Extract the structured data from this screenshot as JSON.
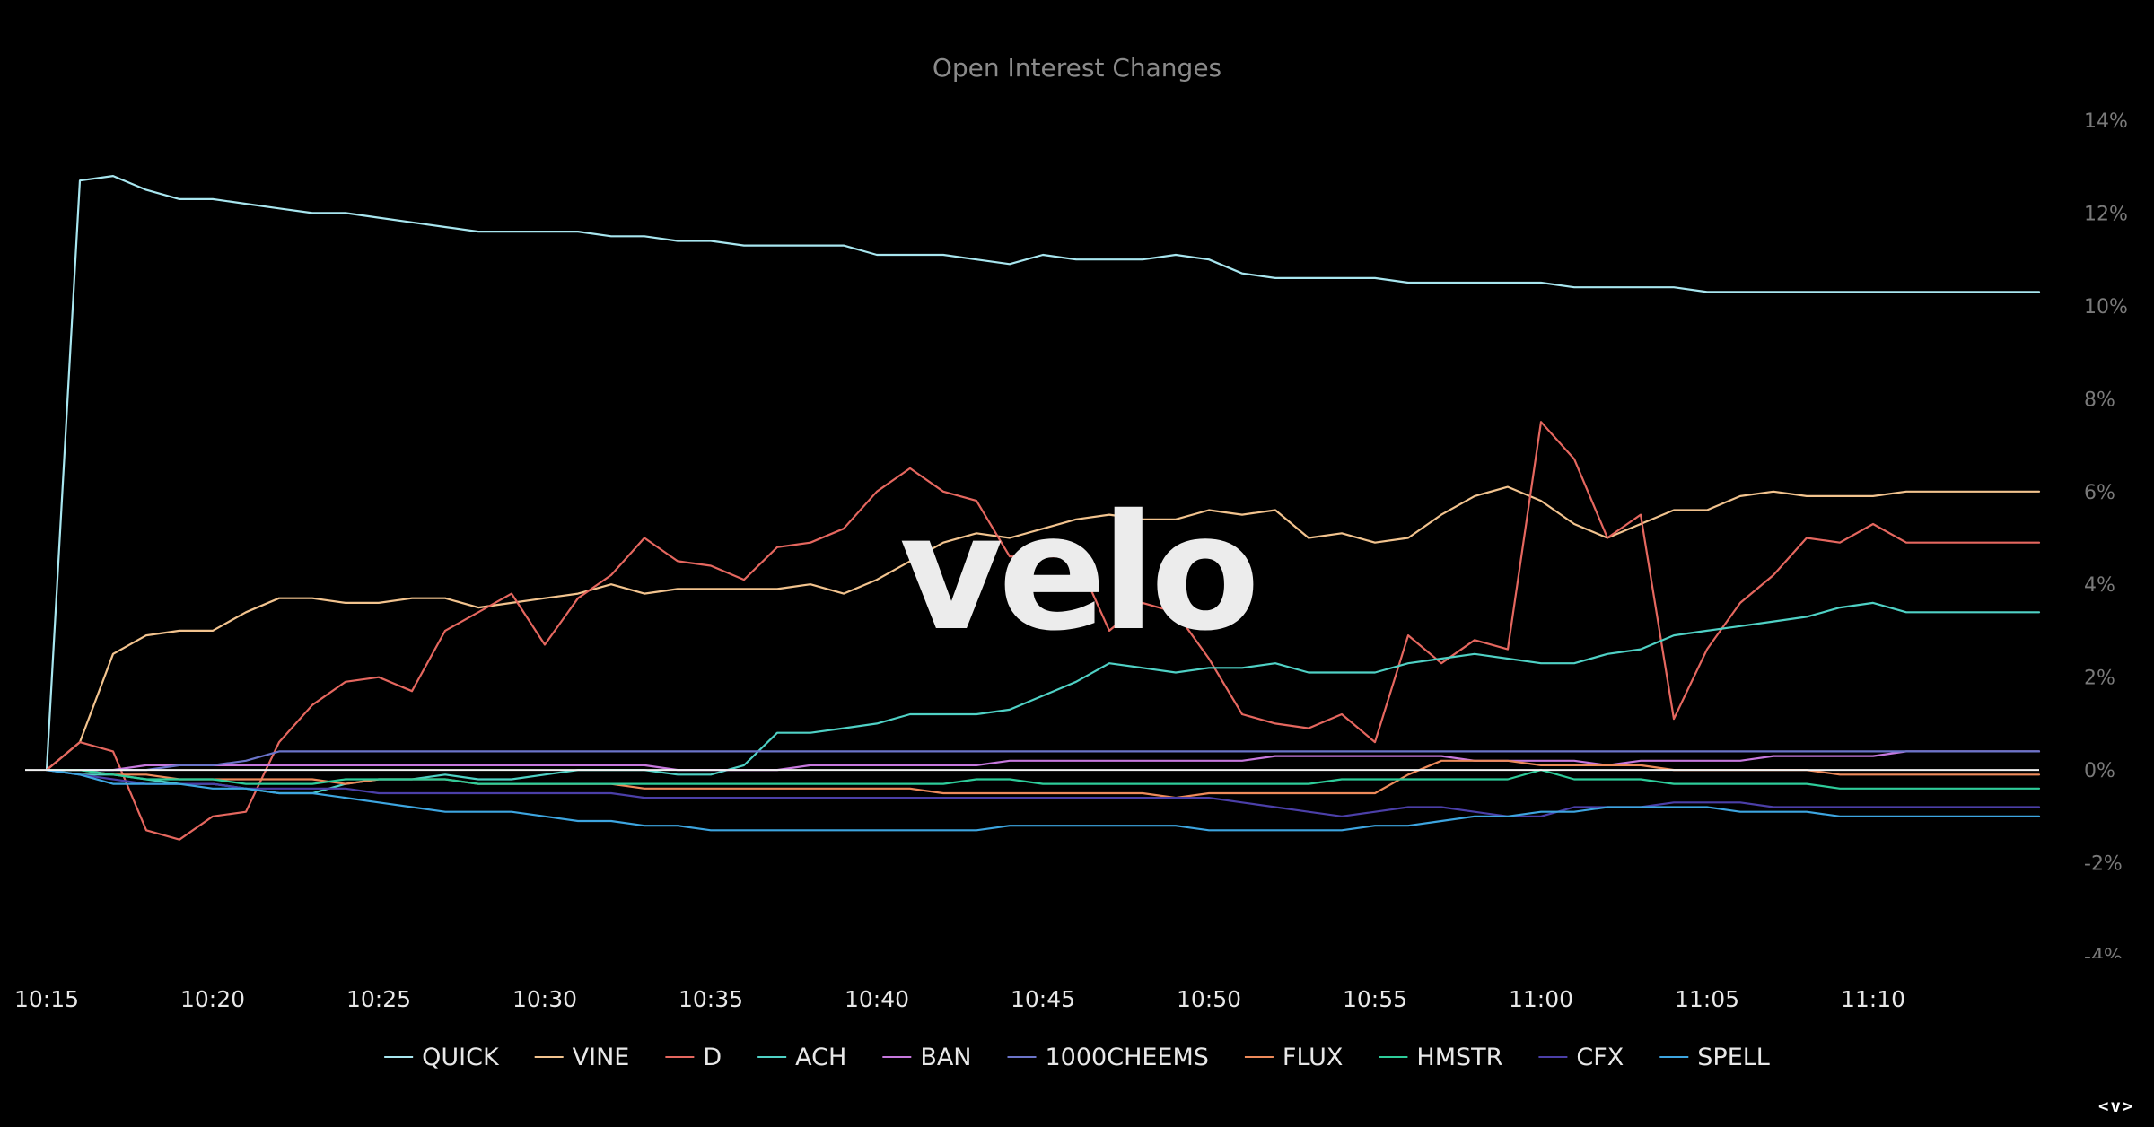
{
  "chart_data": {
    "type": "line",
    "title": "Open Interest Changes",
    "watermark": "velo",
    "xlabel": "",
    "ylabel": "",
    "ylim": [
      -4,
      14
    ],
    "yticks": [
      14,
      12,
      10,
      8,
      6,
      4,
      2,
      0,
      -2,
      -4
    ],
    "ytick_labels": [
      "14%",
      "12%",
      "10%",
      "8%",
      "6%",
      "4%",
      "2%",
      "0%",
      "-2%",
      "-4%"
    ],
    "xlim": [
      0,
      60
    ],
    "x_minutes": [
      0,
      1,
      2,
      3,
      4,
      5,
      6,
      7,
      8,
      9,
      10,
      11,
      12,
      13,
      14,
      15,
      16,
      17,
      18,
      19,
      20,
      21,
      22,
      23,
      24,
      25,
      26,
      27,
      28,
      29,
      30,
      31,
      32,
      33,
      34,
      35,
      36,
      37,
      38,
      39,
      40,
      41,
      42,
      43,
      44,
      45,
      46,
      47,
      48,
      49,
      50,
      51,
      52,
      53,
      54,
      55,
      56,
      57,
      58,
      59,
      60
    ],
    "xticks": [
      0,
      5,
      10,
      15,
      20,
      25,
      30,
      35,
      40,
      45,
      50,
      55
    ],
    "xtick_labels": [
      "10:15",
      "10:20",
      "10:25",
      "10:30",
      "10:35",
      "10:40",
      "10:45",
      "10:50",
      "10:55",
      "11:00",
      "11:05",
      "11:10"
    ],
    "legend_position": "bottom",
    "grid": false,
    "series": [
      {
        "name": "QUICK",
        "color": "#a8e6ef",
        "values": [
          0,
          12.7,
          12.8,
          12.5,
          12.3,
          12.3,
          12.2,
          12.1,
          12.0,
          12.0,
          11.9,
          11.8,
          11.7,
          11.6,
          11.6,
          11.6,
          11.6,
          11.5,
          11.5,
          11.4,
          11.4,
          11.3,
          11.3,
          11.3,
          11.3,
          11.1,
          11.1,
          11.1,
          11.0,
          10.9,
          11.1,
          11.0,
          11.0,
          11.0,
          11.1,
          11.0,
          10.7,
          10.6,
          10.6,
          10.6,
          10.6,
          10.5,
          10.5,
          10.5,
          10.5,
          10.5,
          10.4,
          10.4,
          10.4,
          10.4,
          10.3,
          10.3,
          10.3,
          10.3,
          10.3,
          10.3,
          10.3,
          10.3,
          10.3,
          10.3,
          10.3
        ]
      },
      {
        "name": "VINE",
        "color": "#f2c38e",
        "values": [
          0,
          0.6,
          2.5,
          2.9,
          3.0,
          3.0,
          3.4,
          3.7,
          3.7,
          3.6,
          3.6,
          3.7,
          3.7,
          3.5,
          3.6,
          3.7,
          3.8,
          4.0,
          3.8,
          3.9,
          3.9,
          3.9,
          3.9,
          4.0,
          3.8,
          4.1,
          4.5,
          4.9,
          5.1,
          5.0,
          5.2,
          5.4,
          5.5,
          5.4,
          5.4,
          5.6,
          5.5,
          5.6,
          5.0,
          5.1,
          4.9,
          5.0,
          5.5,
          5.9,
          6.1,
          5.8,
          5.3,
          5.0,
          5.3,
          5.6,
          5.6,
          5.9,
          6.0,
          5.9,
          5.9,
          5.9,
          6.0,
          6.0,
          6.0,
          6.0,
          6.0
        ]
      },
      {
        "name": "D",
        "color": "#e5675f",
        "values": [
          0,
          0.6,
          0.4,
          -1.3,
          -1.5,
          -1.0,
          -0.9,
          0.6,
          1.4,
          1.9,
          2.0,
          1.7,
          3.0,
          3.4,
          3.8,
          2.7,
          3.7,
          4.2,
          5.0,
          4.5,
          4.4,
          4.1,
          4.8,
          4.9,
          5.2,
          6.0,
          6.5,
          6.0,
          5.8,
          4.6,
          4.6,
          4.6,
          3.0,
          3.6,
          3.4,
          2.4,
          1.2,
          1.0,
          0.9,
          1.2,
          0.6,
          2.9,
          2.3,
          2.8,
          2.6,
          7.5,
          6.7,
          5.0,
          5.5,
          1.1,
          2.6,
          3.6,
          4.2,
          5.0,
          4.9,
          5.3,
          4.9,
          4.9,
          4.9,
          4.9,
          4.9
        ]
      },
      {
        "name": "ACH",
        "color": "#4fd1c5",
        "values": [
          0,
          -0.1,
          -0.1,
          -0.2,
          -0.3,
          -0.3,
          -0.4,
          -0.5,
          -0.5,
          -0.3,
          -0.2,
          -0.2,
          -0.1,
          -0.2,
          -0.2,
          -0.1,
          0.0,
          0.0,
          0.0,
          -0.1,
          -0.1,
          0.1,
          0.8,
          0.8,
          0.9,
          1.0,
          1.2,
          1.2,
          1.2,
          1.3,
          1.6,
          1.9,
          2.3,
          2.2,
          2.1,
          2.2,
          2.2,
          2.3,
          2.1,
          2.1,
          2.1,
          2.3,
          2.4,
          2.5,
          2.4,
          2.3,
          2.3,
          2.5,
          2.6,
          2.9,
          3.0,
          3.1,
          3.2,
          3.3,
          3.5,
          3.6,
          3.4,
          3.4,
          3.4,
          3.4,
          3.4
        ]
      },
      {
        "name": "BAN",
        "color": "#c678dd",
        "values": [
          0,
          0.0,
          0.0,
          0.1,
          0.1,
          0.1,
          0.1,
          0.1,
          0.1,
          0.1,
          0.1,
          0.1,
          0.1,
          0.1,
          0.1,
          0.1,
          0.1,
          0.1,
          0.1,
          0.0,
          0.0,
          0.0,
          0.0,
          0.1,
          0.1,
          0.1,
          0.1,
          0.1,
          0.1,
          0.2,
          0.2,
          0.2,
          0.2,
          0.2,
          0.2,
          0.2,
          0.2,
          0.3,
          0.3,
          0.3,
          0.3,
          0.3,
          0.3,
          0.2,
          0.2,
          0.2,
          0.2,
          0.1,
          0.2,
          0.2,
          0.2,
          0.2,
          0.3,
          0.3,
          0.3,
          0.3,
          0.4,
          0.4,
          0.4,
          0.4,
          0.4
        ]
      },
      {
        "name": "1000CHEEMS",
        "color": "#6b74c9",
        "values": [
          0,
          0.0,
          0.0,
          0.0,
          0.1,
          0.1,
          0.2,
          0.4,
          0.4,
          0.4,
          0.4,
          0.4,
          0.4,
          0.4,
          0.4,
          0.4,
          0.4,
          0.4,
          0.4,
          0.4,
          0.4,
          0.4,
          0.4,
          0.4,
          0.4,
          0.4,
          0.4,
          0.4,
          0.4,
          0.4,
          0.4,
          0.4,
          0.4,
          0.4,
          0.4,
          0.4,
          0.4,
          0.4,
          0.4,
          0.4,
          0.4,
          0.4,
          0.4,
          0.4,
          0.4,
          0.4,
          0.4,
          0.4,
          0.4,
          0.4,
          0.4,
          0.4,
          0.4,
          0.4,
          0.4,
          0.4,
          0.4,
          0.4,
          0.4,
          0.4,
          0.4
        ]
      },
      {
        "name": "FLUX",
        "color": "#ee8a5a",
        "values": [
          0,
          0.0,
          -0.1,
          -0.1,
          -0.2,
          -0.2,
          -0.2,
          -0.2,
          -0.2,
          -0.3,
          -0.2,
          -0.2,
          -0.2,
          -0.3,
          -0.3,
          -0.3,
          -0.3,
          -0.3,
          -0.4,
          -0.4,
          -0.4,
          -0.4,
          -0.4,
          -0.4,
          -0.4,
          -0.4,
          -0.4,
          -0.5,
          -0.5,
          -0.5,
          -0.5,
          -0.5,
          -0.5,
          -0.5,
          -0.6,
          -0.5,
          -0.5,
          -0.5,
          -0.5,
          -0.5,
          -0.5,
          -0.1,
          0.2,
          0.2,
          0.2,
          0.1,
          0.1,
          0.1,
          0.1,
          0.0,
          0.0,
          0.0,
          0.0,
          0.0,
          -0.1,
          -0.1,
          -0.1,
          -0.1,
          -0.1,
          -0.1,
          -0.1
        ]
      },
      {
        "name": "HMSTR",
        "color": "#2ecc9a",
        "values": [
          0,
          0.0,
          -0.1,
          -0.2,
          -0.2,
          -0.2,
          -0.3,
          -0.3,
          -0.3,
          -0.2,
          -0.2,
          -0.2,
          -0.2,
          -0.3,
          -0.3,
          -0.3,
          -0.3,
          -0.3,
          -0.3,
          -0.3,
          -0.3,
          -0.3,
          -0.3,
          -0.3,
          -0.3,
          -0.3,
          -0.3,
          -0.3,
          -0.2,
          -0.2,
          -0.3,
          -0.3,
          -0.3,
          -0.3,
          -0.3,
          -0.3,
          -0.3,
          -0.3,
          -0.3,
          -0.2,
          -0.2,
          -0.2,
          -0.2,
          -0.2,
          -0.2,
          0.0,
          -0.2,
          -0.2,
          -0.2,
          -0.3,
          -0.3,
          -0.3,
          -0.3,
          -0.3,
          -0.4,
          -0.4,
          -0.4,
          -0.4,
          -0.4,
          -0.4,
          -0.4
        ]
      },
      {
        "name": "CFX",
        "color": "#4b3fa8",
        "values": [
          0,
          -0.1,
          -0.2,
          -0.3,
          -0.3,
          -0.3,
          -0.4,
          -0.4,
          -0.4,
          -0.4,
          -0.5,
          -0.5,
          -0.5,
          -0.5,
          -0.5,
          -0.5,
          -0.5,
          -0.5,
          -0.6,
          -0.6,
          -0.6,
          -0.6,
          -0.6,
          -0.6,
          -0.6,
          -0.6,
          -0.6,
          -0.6,
          -0.6,
          -0.6,
          -0.6,
          -0.6,
          -0.6,
          -0.6,
          -0.6,
          -0.6,
          -0.7,
          -0.8,
          -0.9,
          -1.0,
          -0.9,
          -0.8,
          -0.8,
          -0.9,
          -1.0,
          -1.0,
          -0.8,
          -0.8,
          -0.8,
          -0.7,
          -0.7,
          -0.7,
          -0.8,
          -0.8,
          -0.8,
          -0.8,
          -0.8,
          -0.8,
          -0.8,
          -0.8,
          -0.8
        ]
      },
      {
        "name": "SPELL",
        "color": "#3da5e0",
        "values": [
          0,
          -0.1,
          -0.3,
          -0.3,
          -0.3,
          -0.4,
          -0.4,
          -0.5,
          -0.5,
          -0.6,
          -0.7,
          -0.8,
          -0.9,
          -0.9,
          -0.9,
          -1.0,
          -1.1,
          -1.1,
          -1.2,
          -1.2,
          -1.3,
          -1.3,
          -1.3,
          -1.3,
          -1.3,
          -1.3,
          -1.3,
          -1.3,
          -1.3,
          -1.2,
          -1.2,
          -1.2,
          -1.2,
          -1.2,
          -1.2,
          -1.3,
          -1.3,
          -1.3,
          -1.3,
          -1.3,
          -1.2,
          -1.2,
          -1.1,
          -1.0,
          -1.0,
          -0.9,
          -0.9,
          -0.8,
          -0.8,
          -0.8,
          -0.8,
          -0.9,
          -0.9,
          -0.9,
          -1.0,
          -1.0,
          -1.0,
          -1.0,
          -1.0,
          -1.0,
          -1.0
        ]
      }
    ]
  },
  "nav_widget": {
    "label": "<v>"
  }
}
